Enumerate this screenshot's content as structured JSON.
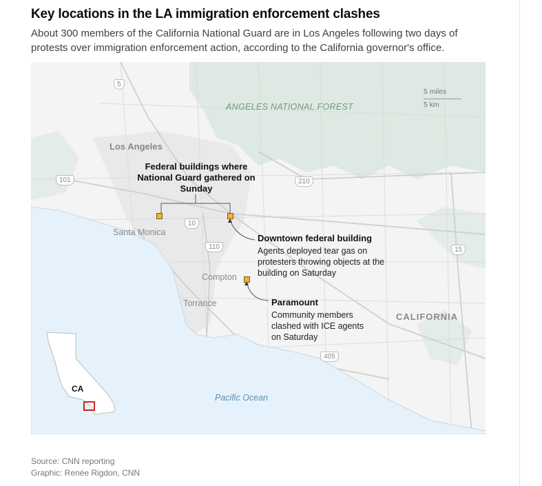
{
  "header": {
    "title": "Key locations in the LA immigration enforcement clashes",
    "subtitle": "About 300 members of the California National Guard are in Los Angeles following two days of protests over immigration enforcement action, according to the California governor's office."
  },
  "map": {
    "places": {
      "los_angeles": "Los Angeles",
      "santa_monica": "Santa Monica",
      "compton": "Compton",
      "torrance": "Torrance",
      "forest": "ANGELES NATIONAL FOREST",
      "ocean": "Pacific Ocean",
      "state": "CALIFORNIA"
    },
    "highways": [
      "5",
      "101",
      "210",
      "10",
      "110",
      "15",
      "405"
    ],
    "scale": {
      "miles": "5 miles",
      "km": "5 km"
    },
    "annotations": {
      "federal_group": "Federal buildings where National Guard gathered on Sunday",
      "downtown_title": "Downtown federal building",
      "downtown_text": "Agents deployed tear gas on protesters throwing objects at the building on Saturday",
      "paramount_title": "Paramount",
      "paramount_text": "Community members clashed with ICE agents on Saturday"
    },
    "inset": {
      "label": "CA"
    },
    "colors": {
      "marker": "#f2b233",
      "ocean": "#e6f2fb",
      "forest": "#dde9e2",
      "inset_box": "#cc2222"
    }
  },
  "footer": {
    "source": "Source: CNN reporting",
    "credit": "Graphic: Renée Rigdon, CNN"
  }
}
